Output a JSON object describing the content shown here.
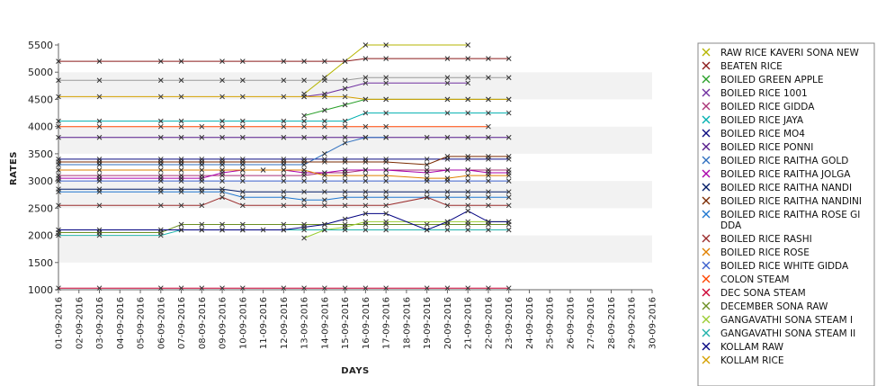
{
  "chart_data": {
    "type": "line",
    "title": "",
    "xlabel": "DAYS",
    "ylabel": "RATES",
    "ylim": [
      1000,
      5500
    ],
    "yticks": [
      1000,
      1500,
      2000,
      2500,
      3000,
      3500,
      4000,
      4500,
      5000,
      5500
    ],
    "categories": [
      "01-09-2016",
      "02-09-2016",
      "03-09-2016",
      "04-09-2016",
      "05-09-2016",
      "06-09-2016",
      "07-09-2016",
      "08-09-2016",
      "09-09-2016",
      "10-09-2016",
      "11-09-2016",
      "12-09-2016",
      "13-09-2016",
      "14-09-2016",
      "15-09-2016",
      "16-09-2016",
      "17-09-2016",
      "18-09-2016",
      "19-09-2016",
      "20-09-2016",
      "21-09-2016",
      "22-09-2016",
      "23-09-2016",
      "24-09-2016",
      "25-09-2016",
      "26-09-2016",
      "27-09-2016",
      "28-09-2016",
      "29-09-2016",
      "30-09-2016"
    ],
    "grid": "alternating horizontal bands",
    "legend_position": "right",
    "series": [
      {
        "name": "RAW RICE KAVERI SONA NEW",
        "color": "#b5b500",
        "values": [
          null,
          null,
          null,
          null,
          null,
          null,
          null,
          null,
          null,
          null,
          null,
          null,
          4600,
          4900,
          5200,
          5500,
          5500,
          null,
          null,
          null,
          5500,
          null,
          null,
          null,
          null,
          null,
          null,
          null,
          null,
          null
        ]
      },
      {
        "name": "BEATEN RICE",
        "color": "#8b1a1a",
        "values": [
          5200,
          null,
          5200,
          null,
          null,
          5200,
          5200,
          null,
          5200,
          5200,
          null,
          5200,
          5200,
          5200,
          5200,
          5250,
          5250,
          null,
          null,
          5250,
          5250,
          5250,
          5250,
          null,
          null,
          null,
          null,
          null,
          null,
          null
        ]
      },
      {
        "name": "BOILED GREEN APPLE",
        "color": "#2aa02a",
        "values": [
          null,
          null,
          null,
          null,
          null,
          null,
          null,
          null,
          null,
          null,
          null,
          null,
          4200,
          4300,
          4400,
          4500,
          4500,
          null,
          null,
          4500,
          4500,
          4500,
          4500,
          null,
          null,
          null,
          null,
          null,
          null,
          null
        ]
      },
      {
        "name": "BOILED RICE 1001",
        "color": "#7030a0",
        "values": [
          null,
          null,
          null,
          null,
          null,
          null,
          null,
          null,
          null,
          null,
          null,
          null,
          4550,
          4600,
          4700,
          4800,
          4800,
          null,
          null,
          4800,
          4800,
          null,
          null,
          null,
          null,
          null,
          null,
          null,
          null,
          null
        ]
      },
      {
        "name": "BOILED RICE GIDDA",
        "color": "#aa3377",
        "values": [
          3100,
          null,
          3100,
          null,
          null,
          3100,
          3100,
          3100,
          3100,
          3100,
          null,
          3100,
          3100,
          3150,
          3150,
          3200,
          3200,
          null,
          3200,
          3200,
          3200,
          3200,
          3200,
          null,
          null,
          null,
          null,
          null,
          null,
          null
        ]
      },
      {
        "name": "BOILED RICE JAYA",
        "color": "#00b0b0",
        "values": [
          4100,
          null,
          4100,
          null,
          null,
          4100,
          4100,
          null,
          4100,
          4100,
          null,
          4100,
          4100,
          4100,
          4100,
          4250,
          4250,
          null,
          null,
          4250,
          4250,
          4250,
          4250,
          null,
          null,
          null,
          null,
          null,
          null,
          null
        ]
      },
      {
        "name": "BOILED RICE MO4",
        "color": "#0a0a80",
        "values": [
          3400,
          null,
          3400,
          null,
          null,
          3400,
          3400,
          3400,
          3400,
          3400,
          null,
          3400,
          3400,
          3400,
          3400,
          3400,
          3400,
          null,
          3400,
          3400,
          3400,
          3400,
          3400,
          null,
          null,
          null,
          null,
          null,
          null,
          null
        ]
      },
      {
        "name": "BOILED RICE PONNI",
        "color": "#551a8b",
        "values": [
          3800,
          null,
          3800,
          null,
          null,
          3800,
          3800,
          3800,
          3800,
          3800,
          null,
          3800,
          3800,
          3800,
          3800,
          3800,
          3800,
          null,
          3800,
          3800,
          3800,
          3800,
          3800,
          null,
          null,
          null,
          null,
          null,
          null,
          null
        ]
      },
      {
        "name": "BOILED RICE RAITHA GOLD",
        "color": "#2f6fbf",
        "values": [
          3300,
          null,
          3300,
          null,
          null,
          3300,
          3300,
          3300,
          3300,
          3300,
          null,
          3300,
          3300,
          3500,
          3700,
          3800,
          3800,
          null,
          null,
          null,
          null,
          null,
          null,
          null,
          null,
          null,
          null,
          null,
          null,
          null
        ]
      },
      {
        "name": "BOILED RICE RAITHA JOLGA",
        "color": "#aa00aa",
        "values": [
          3050,
          null,
          3050,
          null,
          null,
          3050,
          3050,
          3050,
          3150,
          3200,
          3200,
          3200,
          3150,
          3150,
          3200,
          3200,
          3200,
          null,
          3150,
          3200,
          3200,
          3150,
          3150,
          null,
          null,
          null,
          null,
          null,
          null,
          null
        ]
      },
      {
        "name": "BOILED RICE RAITHA NANDI",
        "color": "#001a66",
        "values": [
          2850,
          null,
          2850,
          null,
          null,
          2850,
          2850,
          2850,
          2850,
          2800,
          null,
          2800,
          2800,
          2800,
          2800,
          2800,
          2800,
          null,
          2800,
          2800,
          2800,
          2800,
          2800,
          null,
          null,
          null,
          null,
          null,
          null,
          null
        ]
      },
      {
        "name": "BOILED RICE RAITHA NANDINI",
        "color": "#7a2a00",
        "values": [
          3350,
          null,
          3350,
          null,
          null,
          3350,
          3350,
          3350,
          3350,
          3350,
          null,
          3350,
          3350,
          3350,
          3350,
          3350,
          3350,
          null,
          3300,
          3450,
          3450,
          3450,
          3450,
          null,
          null,
          null,
          null,
          null,
          null,
          null
        ]
      },
      {
        "name": "BOILED RICE RAITHA ROSE GIDDA",
        "color": "#1f77d0",
        "values": [
          2800,
          null,
          2800,
          null,
          null,
          2800,
          2800,
          2800,
          2800,
          2700,
          null,
          2700,
          2650,
          2650,
          2700,
          2700,
          2700,
          null,
          2700,
          2700,
          2700,
          2700,
          2700,
          null,
          null,
          null,
          null,
          null,
          null,
          null
        ]
      },
      {
        "name": "BOILED RICE RASHI",
        "color": "#9b2c2c",
        "values": [
          2550,
          null,
          2550,
          null,
          null,
          2550,
          2550,
          2550,
          2700,
          2550,
          null,
          2550,
          2550,
          2550,
          2550,
          2550,
          2550,
          null,
          2700,
          2550,
          2550,
          2550,
          2550,
          null,
          null,
          null,
          null,
          null,
          null,
          null
        ]
      },
      {
        "name": "BOILED RICE ROSE",
        "color": "#e08000",
        "values": [
          3200,
          null,
          3200,
          null,
          null,
          3200,
          3200,
          3200,
          3200,
          3200,
          null,
          3200,
          3200,
          3100,
          3100,
          3100,
          3100,
          null,
          3050,
          3050,
          3100,
          3100,
          3100,
          null,
          null,
          null,
          null,
          null,
          null,
          null
        ]
      },
      {
        "name": "BOILED RICE WHITE GIDDA",
        "color": "#3a5fcd",
        "values": [
          3000,
          null,
          3000,
          null,
          null,
          3000,
          3000,
          3000,
          3000,
          3000,
          null,
          3000,
          3000,
          3000,
          3000,
          3000,
          3000,
          null,
          3000,
          3000,
          3000,
          3000,
          3000,
          null,
          null,
          null,
          null,
          null,
          null,
          null
        ]
      },
      {
        "name": "COLON STEAM",
        "color": "#ff4500",
        "values": [
          4000,
          null,
          4000,
          null,
          null,
          4000,
          4000,
          4000,
          4000,
          4000,
          null,
          4000,
          4000,
          4000,
          4000,
          4000,
          4000,
          null,
          null,
          null,
          null,
          4000,
          null,
          null,
          null,
          null,
          null,
          null,
          null,
          null
        ]
      },
      {
        "name": "DEC SONA STEAM",
        "color": "#cc0033",
        "values": [
          1030,
          null,
          1030,
          null,
          null,
          1030,
          1030,
          1030,
          1030,
          1030,
          null,
          1030,
          1030,
          1030,
          1030,
          1030,
          1030,
          null,
          1030,
          1030,
          1030,
          1030,
          1030,
          null,
          null,
          null,
          null,
          null,
          null,
          null
        ]
      },
      {
        "name": "DECEMBER SONA RAW",
        "color": "#6b8e23",
        "values": [
          2050,
          null,
          2050,
          null,
          null,
          2050,
          2200,
          2200,
          2200,
          2200,
          null,
          2200,
          2200,
          2200,
          2200,
          2200,
          2200,
          null,
          2200,
          2200,
          2200,
          2200,
          2200,
          null,
          null,
          null,
          null,
          null,
          null,
          null
        ]
      },
      {
        "name": "GANGAVATHI SONA STEAM I",
        "color": "#9acd32",
        "values": [
          null,
          null,
          null,
          null,
          null,
          null,
          null,
          null,
          null,
          null,
          null,
          null,
          1950,
          2100,
          2150,
          2250,
          2250,
          null,
          null,
          2250,
          2250,
          2250,
          2250,
          null,
          null,
          null,
          null,
          null,
          null,
          null
        ]
      },
      {
        "name": "GANGAVATHI SONA STEAM II",
        "color": "#20b2aa",
        "values": [
          2000,
          null,
          2000,
          null,
          null,
          2000,
          2100,
          2100,
          2100,
          2100,
          2100,
          2100,
          2100,
          2100,
          2100,
          2100,
          2100,
          null,
          2100,
          2100,
          2100,
          2100,
          2100,
          null,
          null,
          null,
          null,
          null,
          null,
          null
        ]
      },
      {
        "name": "KOLLAM RAW",
        "color": "#000080",
        "values": [
          2100,
          null,
          2100,
          null,
          null,
          2100,
          2100,
          2100,
          2100,
          2100,
          null,
          2100,
          2150,
          2200,
          2300,
          2400,
          2400,
          null,
          2100,
          2250,
          2450,
          2250,
          2250,
          null,
          null,
          null,
          null,
          null,
          null,
          null
        ]
      },
      {
        "name": "KOLLAM RICE",
        "color": "#d4a000",
        "values": [
          4550,
          null,
          4550,
          null,
          null,
          4550,
          4550,
          null,
          4550,
          4550,
          null,
          4550,
          4550,
          4550,
          4550,
          4500,
          4500,
          null,
          null,
          4500,
          4500,
          4500,
          4500,
          null,
          null,
          null,
          null,
          null,
          null,
          null
        ]
      },
      {
        "name": "",
        "color": "#999999",
        "values": [
          4850,
          null,
          4850,
          null,
          null,
          4850,
          4850,
          null,
          4850,
          4850,
          null,
          4850,
          4850,
          4850,
          4850,
          4900,
          4900,
          null,
          null,
          4900,
          4900,
          4900,
          4900,
          null,
          null,
          null,
          null,
          null,
          null,
          null
        ]
      }
    ]
  }
}
